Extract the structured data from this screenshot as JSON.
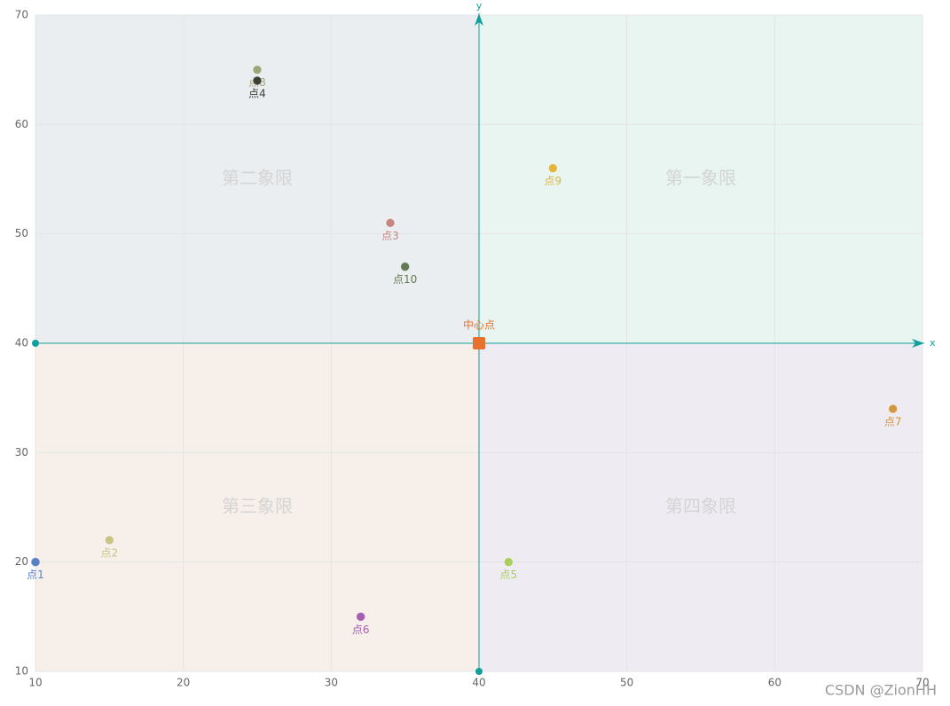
{
  "chart_data": {
    "type": "scatter",
    "xlim": [
      10,
      70
    ],
    "ylim": [
      10,
      70
    ],
    "xticks": [
      10,
      20,
      30,
      40,
      50,
      60,
      70
    ],
    "yticks": [
      10,
      20,
      30,
      40,
      50,
      60,
      70
    ],
    "grid": true,
    "x_axis_label": "x",
    "y_axis_label": "y",
    "axis_color": "#11a09b",
    "center": {
      "name": "中心点",
      "x": 40,
      "y": 40,
      "color": "#e8712e"
    },
    "quadrants": [
      {
        "name": "第一象限",
        "color": "#e8f5f1"
      },
      {
        "name": "第二象限",
        "color": "#eaeef1"
      },
      {
        "name": "第三象限",
        "color": "#f7efea"
      },
      {
        "name": "第四象限",
        "color": "#efebf2"
      }
    ],
    "points": [
      {
        "name": "点1",
        "x": 10,
        "y": 20,
        "color": "#5b7fc4"
      },
      {
        "name": "点2",
        "x": 15,
        "y": 22,
        "color": "#c9c483"
      },
      {
        "name": "点3",
        "x": 34,
        "y": 51,
        "color": "#c78582"
      },
      {
        "name": "点8",
        "x": 25,
        "y": 65,
        "color": "#9da679"
      },
      {
        "name": "点4",
        "x": 25,
        "y": 64,
        "color": "#3f3f33"
      },
      {
        "name": "点5",
        "x": 42,
        "y": 20,
        "color": "#a9cd5e"
      },
      {
        "name": "点6",
        "x": 32,
        "y": 15,
        "color": "#a45fae"
      },
      {
        "name": "点7",
        "x": 68,
        "y": 34,
        "color": "#d19644"
      },
      {
        "name": "点9",
        "x": 45,
        "y": 56,
        "color": "#e3b53c"
      },
      {
        "name": "点10",
        "x": 35,
        "y": 47,
        "color": "#647a55"
      }
    ]
  },
  "watermark": "CSDN @ZionHH"
}
